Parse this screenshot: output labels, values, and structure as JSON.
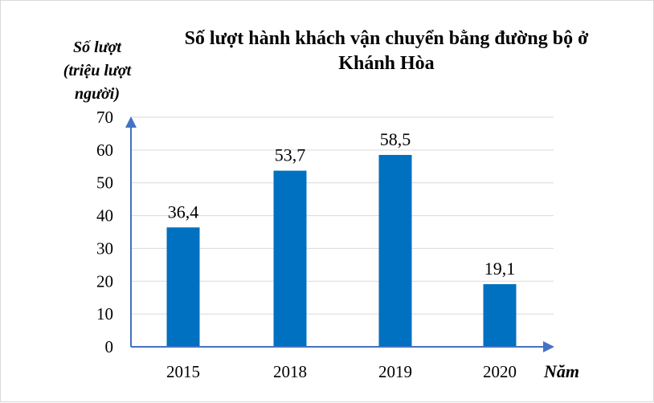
{
  "chart_data": {
    "type": "bar",
    "title": "Số lượt hành khách vận chuyển bằng đường bộ ở Khánh Hòa",
    "title_lines": [
      "Số lượt hành khách vận chuyển bằng đường bộ ở",
      "Khánh Hòa"
    ],
    "xlabel": "Năm",
    "ylabel": "Số lượt (triệu lượt người)",
    "ylabel_lines": [
      "Số lượt",
      "(triệu lượt",
      "người)"
    ],
    "categories": [
      "2015",
      "2018",
      "2019",
      "2020"
    ],
    "values": [
      36.4,
      53.7,
      58.5,
      19.1
    ],
    "data_labels": [
      "36,4",
      "53,7",
      "58,5",
      "19,1"
    ],
    "ylim": [
      0,
      70
    ],
    "yticks": [
      0,
      10,
      20,
      30,
      40,
      50,
      60,
      70
    ],
    "grid": true,
    "legend": null,
    "colors": {
      "bar": "#0070c0",
      "axis": "#4472c4",
      "grid": "#d9d9d9"
    }
  }
}
